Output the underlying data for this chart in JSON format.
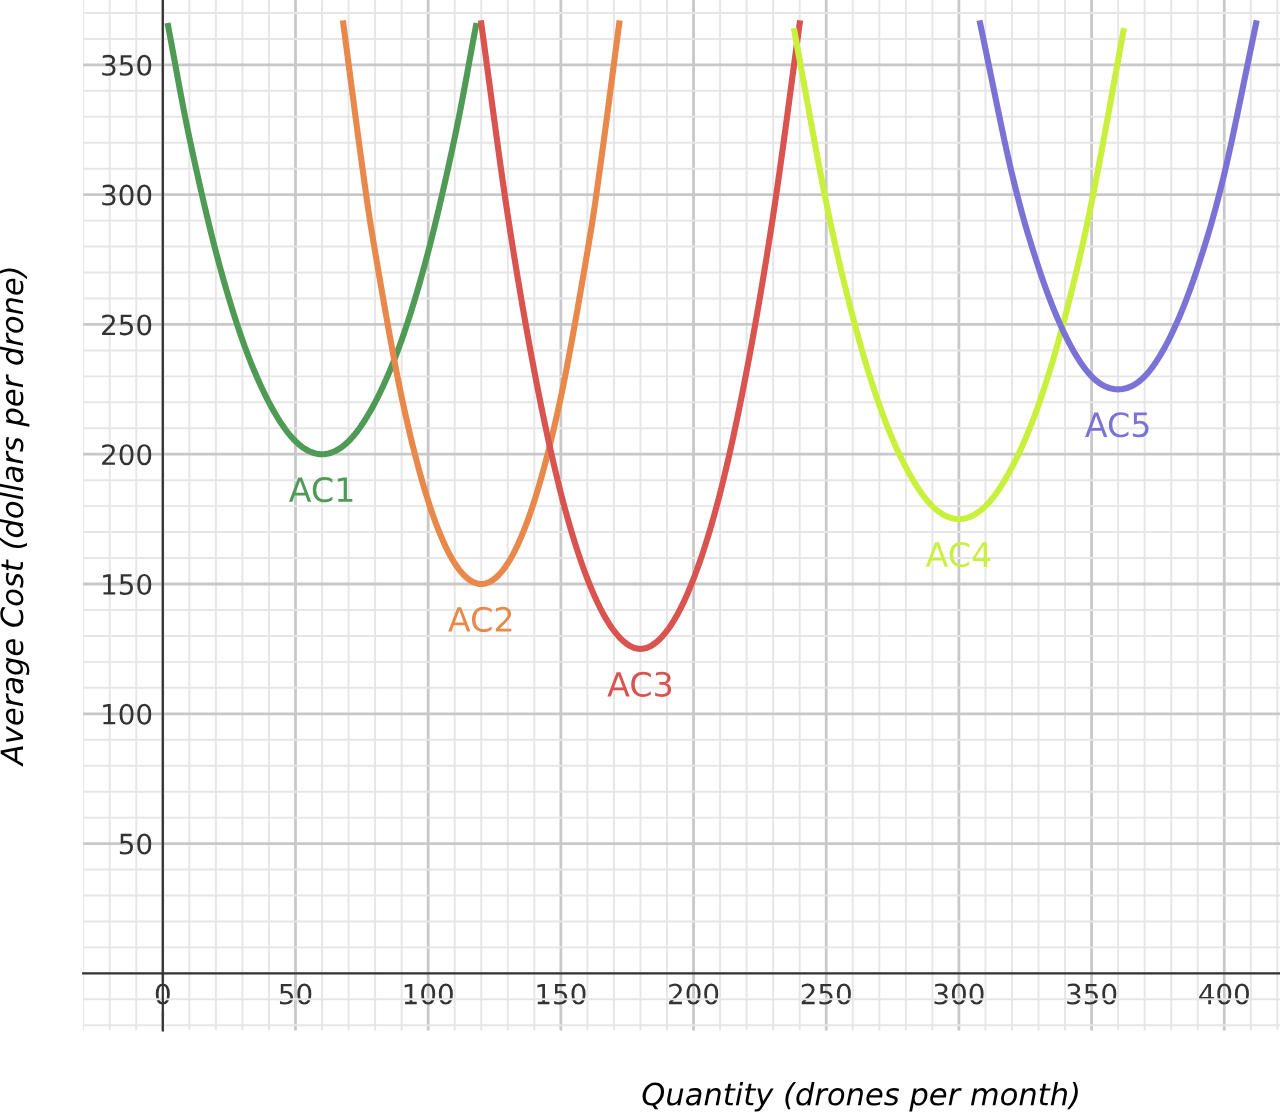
{
  "chart_data": {
    "type": "line",
    "xlabel": "Quantity (drones per month)",
    "ylabel": "Average Cost (dollars per drone)",
    "xlim": [
      -30,
      421
    ],
    "ylim": [
      -22,
      375
    ],
    "xticks": [
      0,
      50,
      100,
      150,
      200,
      250,
      300,
      350,
      400
    ],
    "yticks": [
      50,
      100,
      150,
      200,
      250,
      300,
      350
    ],
    "grid": true,
    "legend": false,
    "marker": "none",
    "line_style": "solid",
    "series": [
      {
        "name": "AC1",
        "color": "#4f9a55",
        "x": [
          2,
          10,
          20,
          30,
          40,
          50,
          60,
          70,
          80,
          90,
          100,
          110,
          118
        ],
        "values": [
          365,
          322,
          278,
          244,
          220,
          205,
          200,
          205,
          220,
          244,
          278,
          322,
          365
        ]
      },
      {
        "name": "AC2",
        "color": "#e8884a",
        "x": [
          68,
          75,
          80,
          90,
          100,
          110,
          120,
          130,
          140,
          150,
          160,
          165,
          172
        ],
        "values": [
          366,
          312,
          278,
          222,
          182,
          158,
          150,
          158,
          182,
          222,
          278,
          312,
          366
        ]
      },
      {
        "name": "AC3",
        "color": "#d9534f",
        "x": [
          120,
          130,
          140,
          150,
          160,
          170,
          180,
          190,
          200,
          210,
          220,
          230,
          240
        ],
        "values": [
          366,
          292,
          232,
          185,
          152,
          132,
          125,
          132,
          152,
          185,
          232,
          292,
          366
        ]
      },
      {
        "name": "AC4",
        "color": "#c8f03c",
        "x": [
          238,
          250,
          260,
          270,
          280,
          290,
          300,
          310,
          320,
          330,
          340,
          350,
          362
        ],
        "values": [
          363,
          297,
          253,
          219,
          195,
          180,
          175,
          180,
          195,
          219,
          253,
          297,
          363
        ]
      },
      {
        "name": "AC5",
        "color": "#7b72d6",
        "x": [
          308,
          320,
          330,
          340,
          350,
          360,
          370,
          380,
          390,
          400,
          412
        ],
        "values": [
          366,
          308,
          272,
          246,
          230,
          225,
          230,
          246,
          272,
          308,
          366
        ]
      }
    ]
  }
}
